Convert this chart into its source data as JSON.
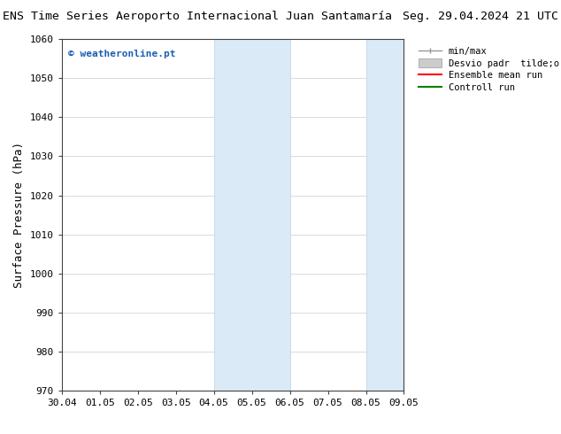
{
  "title_left": "ENS Time Series Aeroporto Internacional Juan Santamaría",
  "title_right": "Seg. 29.04.2024 21 UTC",
  "ylabel": "Surface Pressure (hPa)",
  "ylim": [
    970,
    1060
  ],
  "yticks": [
    970,
    980,
    990,
    1000,
    1010,
    1020,
    1030,
    1040,
    1050,
    1060
  ],
  "xtick_labels": [
    "30.04",
    "01.05",
    "02.05",
    "03.05",
    "04.05",
    "05.05",
    "06.05",
    "07.05",
    "08.05",
    "09.05"
  ],
  "xtick_positions": [
    0,
    1,
    2,
    3,
    4,
    5,
    6,
    7,
    8,
    9
  ],
  "shaded_bands": [
    {
      "xmin": 4,
      "xmax": 6
    },
    {
      "xmin": 8,
      "xmax": 9
    }
  ],
  "shaded_color": "#daeaf6",
  "shaded_edge_color": "#b8d4e8",
  "watermark_text": "© weatheronline.pt",
  "watermark_color": "#1a5fb4",
  "background_color": "#ffffff",
  "grid_color": "#cccccc",
  "title_fontsize": 9.5,
  "tick_fontsize": 8,
  "ylabel_fontsize": 9,
  "legend_label_minmax": "min/max",
  "legend_label_desvio": "Desvio padr  tilde;o",
  "legend_label_ensemble": "Ensemble mean run",
  "legend_label_control": "Controll run",
  "legend_color_minmax": "#999999",
  "legend_color_desvio": "#cccccc",
  "legend_color_ensemble": "#ff0000",
  "legend_color_control": "#008000"
}
